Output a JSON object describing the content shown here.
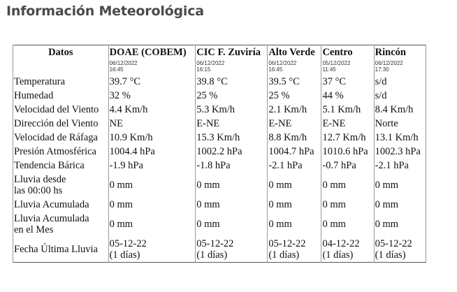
{
  "page_title": "Información Meteorológica",
  "table": {
    "corner": "Datos",
    "stations": [
      {
        "name": "DOAE (COBEM)",
        "date": "06/12/2022",
        "time": "16:45"
      },
      {
        "name": "CIC F. Zuviría",
        "date": "06/12/2022",
        "time": "16:15"
      },
      {
        "name": "Alto Verde",
        "date": "06/12/2022",
        "time": "16:45"
      },
      {
        "name": "Centro",
        "date": "05/12/2022",
        "time": "11:45"
      },
      {
        "name": "Rincón",
        "date": "06/12/2022",
        "time": "17:30"
      }
    ],
    "rows": [
      {
        "label": [
          "Temperatura"
        ],
        "values": [
          [
            "39.7 °C"
          ],
          [
            "39.8 °C"
          ],
          [
            "39.5 °C"
          ],
          [
            "37 °C"
          ],
          [
            "s/d"
          ]
        ]
      },
      {
        "label": [
          "Humedad"
        ],
        "values": [
          [
            "32 %"
          ],
          [
            "25 %"
          ],
          [
            "25 %"
          ],
          [
            "44 %"
          ],
          [
            "s/d"
          ]
        ]
      },
      {
        "label": [
          "Velocidad del Viento"
        ],
        "values": [
          [
            "4.4 Km/h"
          ],
          [
            "5.3 Km/h"
          ],
          [
            "2.1 Km/h"
          ],
          [
            "5.1 Km/h"
          ],
          [
            "8.4 Km/h"
          ]
        ]
      },
      {
        "label": [
          "Dirección del Viento"
        ],
        "values": [
          [
            "NE"
          ],
          [
            "E-NE"
          ],
          [
            "E-NE"
          ],
          [
            "E-NE"
          ],
          [
            "Norte"
          ]
        ]
      },
      {
        "label": [
          "Velocidad de Ráfaga"
        ],
        "values": [
          [
            "10.9 Km/h"
          ],
          [
            "15.3 Km/h"
          ],
          [
            "8.8 Km/h"
          ],
          [
            "12.7 Km/h"
          ],
          [
            "13.1 Km/h"
          ]
        ]
      },
      {
        "label": [
          "Presión Atmosférica"
        ],
        "values": [
          [
            "1004.4 hPa"
          ],
          [
            "1002.2 hPa"
          ],
          [
            "1004.7 hPa"
          ],
          [
            "1010.6 hPa"
          ],
          [
            "1002.3 hPa"
          ]
        ]
      },
      {
        "label": [
          "Tendencia Bárica"
        ],
        "values": [
          [
            "-1.9 hPa"
          ],
          [
            "-1.8 hPa"
          ],
          [
            "-2.1 hPa"
          ],
          [
            "-0.7 hPa"
          ],
          [
            "-2.1 hPa"
          ]
        ]
      },
      {
        "label": [
          "Lluvia desde",
          "las 00:00 hs"
        ],
        "values": [
          [
            "0 mm"
          ],
          [
            "0 mm"
          ],
          [
            "0 mm"
          ],
          [
            "0 mm"
          ],
          [
            "0 mm"
          ]
        ]
      },
      {
        "label": [
          "Lluvia Acumulada"
        ],
        "values": [
          [
            "0 mm"
          ],
          [
            "0 mm"
          ],
          [
            "0 mm"
          ],
          [
            "0 mm"
          ],
          [
            "0 mm"
          ]
        ]
      },
      {
        "label": [
          "Lluvia Acumulada",
          "en el Mes"
        ],
        "values": [
          [
            "0 mm"
          ],
          [
            "0 mm"
          ],
          [
            "0 mm"
          ],
          [
            "0 mm"
          ],
          [
            "0 mm"
          ]
        ]
      },
      {
        "label": [
          "Fecha Última Lluvia"
        ],
        "values": [
          [
            "05-12-22",
            "(1 días)"
          ],
          [
            "05-12-22",
            "(1 días)"
          ],
          [
            "05-12-22",
            "(1 días)"
          ],
          [
            "04-12-22",
            "(1 días)"
          ],
          [
            "05-12-22",
            "(1 días)"
          ]
        ]
      }
    ]
  }
}
